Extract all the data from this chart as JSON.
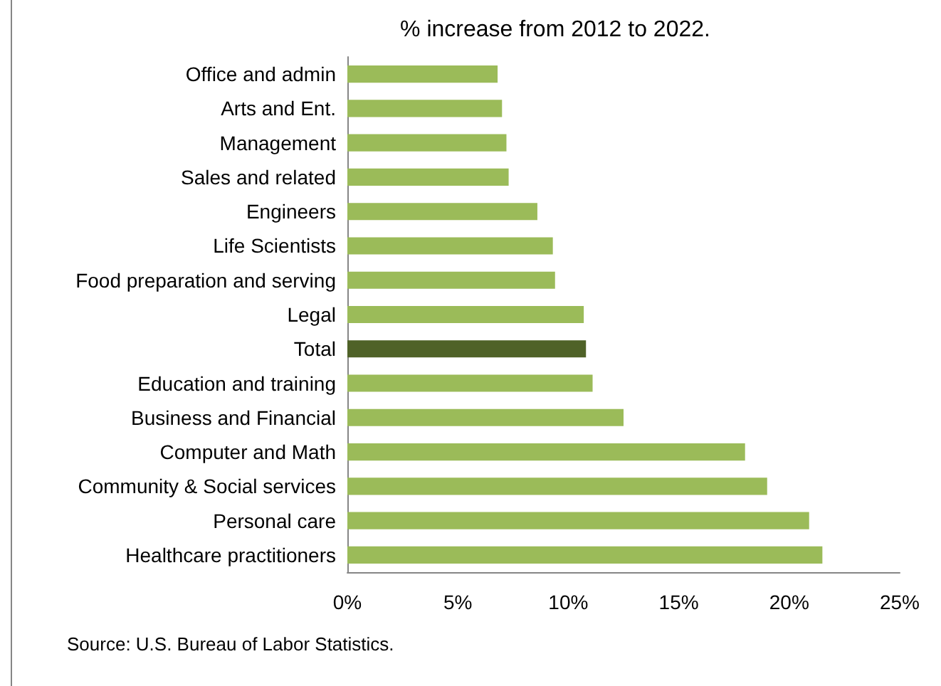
{
  "chart_data": {
    "type": "bar",
    "orientation": "horizontal",
    "title": "% increase from 2012 to 2022.",
    "categories": [
      "Office and admin",
      "Arts and Ent.",
      "Management",
      "Sales and related",
      "Engineers",
      "Life Scientists",
      "Food preparation and serving",
      "Legal",
      "Total",
      "Education and training",
      "Business and Financial",
      "Computer and Math",
      "Community & Social services",
      "Personal care",
      "Healthcare practitioners"
    ],
    "values": [
      6.8,
      7.0,
      7.2,
      7.3,
      8.6,
      9.3,
      9.4,
      10.7,
      10.8,
      11.1,
      12.5,
      18.0,
      19.0,
      20.9,
      21.5
    ],
    "colors": [
      "#9bbb59",
      "#9bbb59",
      "#9bbb59",
      "#9bbb59",
      "#9bbb59",
      "#9bbb59",
      "#9bbb59",
      "#9bbb59",
      "#4f6228",
      "#9bbb59",
      "#9bbb59",
      "#9bbb59",
      "#9bbb59",
      "#9bbb59",
      "#9bbb59"
    ],
    "xlim": [
      0,
      25
    ],
    "xticks": [
      {
        "value": 0,
        "label": "0%"
      },
      {
        "value": 5,
        "label": "5%"
      },
      {
        "value": 10,
        "label": "10%"
      },
      {
        "value": 15,
        "label": "15%"
      },
      {
        "value": 20,
        "label": "20%"
      },
      {
        "value": 25,
        "label": "25%"
      }
    ],
    "annotations": [
      "Source: U.S. Bureau of Labor Statistics."
    ]
  }
}
